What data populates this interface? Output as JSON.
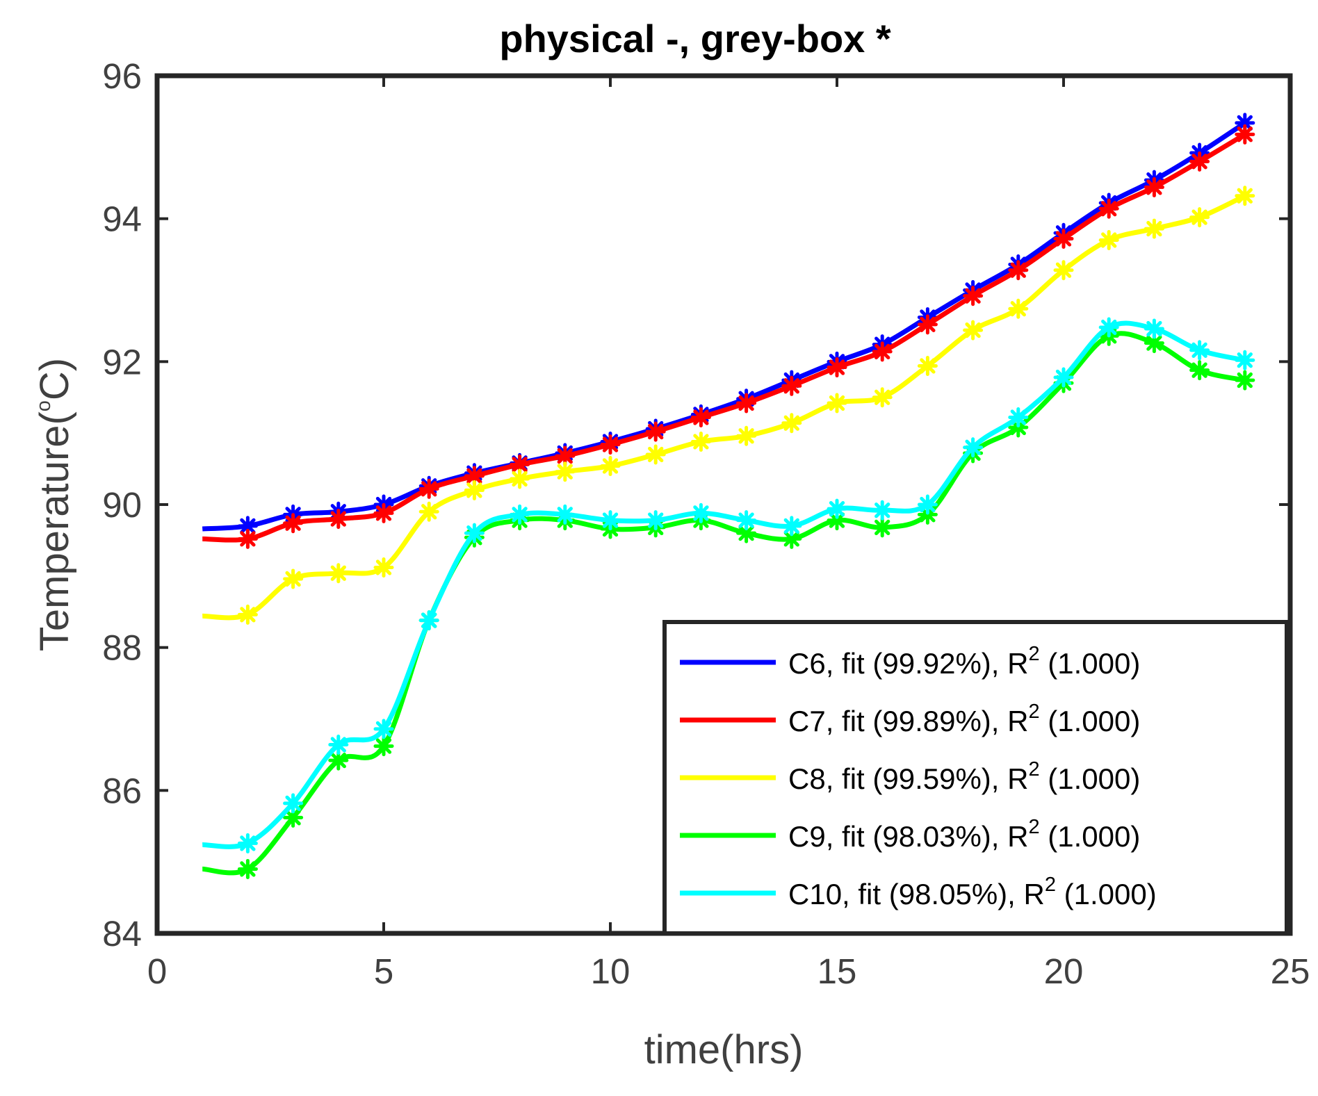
{
  "chart_data": {
    "type": "line",
    "title": "physical -, grey-box *",
    "xlabel": "time(hrs)",
    "ylabel": {
      "prefix": "Temperature(",
      "superscript": "o",
      "suffix": "C)"
    },
    "xlim": [
      0,
      25
    ],
    "ylim": [
      84,
      96
    ],
    "xticks": [
      0,
      5,
      10,
      15,
      20,
      25
    ],
    "yticks": [
      84,
      86,
      88,
      90,
      92,
      94,
      96
    ],
    "legend_position": "bottom-right",
    "series": [
      {
        "name": "C6",
        "legend": {
          "prefix": "C6, fit (99.92%), R",
          "superscript": "2",
          "suffix": " (1.000)"
        },
        "color": "#0000ff",
        "x": [
          1,
          2,
          3,
          4,
          5,
          6,
          7,
          8,
          9,
          10,
          11,
          12,
          13,
          14,
          15,
          16,
          17,
          18,
          19,
          20,
          21,
          22,
          23,
          24
        ],
        "values": [
          89.66,
          89.7,
          89.86,
          89.9,
          90.0,
          90.26,
          90.44,
          90.58,
          90.72,
          90.88,
          91.06,
          91.26,
          91.48,
          91.74,
          92.0,
          92.24,
          92.62,
          93.0,
          93.36,
          93.8,
          94.22,
          94.54,
          94.92,
          95.34
        ]
      },
      {
        "name": "C7",
        "legend": {
          "prefix": "C7, fit (99.89%), R",
          "superscript": "2",
          "suffix": " (1.000)"
        },
        "color": "#ff0000",
        "x": [
          1,
          2,
          3,
          4,
          5,
          6,
          7,
          8,
          9,
          10,
          11,
          12,
          13,
          14,
          15,
          16,
          17,
          18,
          19,
          20,
          21,
          22,
          23,
          24
        ],
        "values": [
          89.52,
          89.52,
          89.74,
          89.8,
          89.88,
          90.22,
          90.4,
          90.56,
          90.68,
          90.84,
          91.02,
          91.22,
          91.42,
          91.66,
          91.92,
          92.14,
          92.52,
          92.92,
          93.28,
          93.72,
          94.14,
          94.44,
          94.8,
          95.18
        ]
      },
      {
        "name": "C8",
        "legend": {
          "prefix": "C8, fit (99.59%), R",
          "superscript": "2",
          "suffix": " (1.000)"
        },
        "color": "#ffff00",
        "x": [
          1,
          2,
          3,
          4,
          5,
          6,
          7,
          8,
          9,
          10,
          11,
          12,
          13,
          14,
          15,
          16,
          17,
          18,
          19,
          20,
          21,
          22,
          23,
          24
        ],
        "values": [
          88.44,
          88.46,
          88.96,
          89.04,
          89.12,
          89.9,
          90.2,
          90.36,
          90.46,
          90.54,
          90.7,
          90.88,
          90.96,
          91.14,
          91.42,
          91.5,
          91.94,
          92.44,
          92.74,
          93.28,
          93.7,
          93.86,
          94.02,
          94.32
        ]
      },
      {
        "name": "C9",
        "legend": {
          "prefix": "C9, fit (98.03%), R",
          "superscript": "2",
          "suffix": " (1.000)"
        },
        "color": "#00ff00",
        "x": [
          1,
          2,
          3,
          4,
          5,
          6,
          7,
          8,
          9,
          10,
          11,
          12,
          13,
          14,
          15,
          16,
          17,
          18,
          19,
          20,
          21,
          22,
          23,
          24
        ],
        "values": [
          84.9,
          84.9,
          85.62,
          86.42,
          86.62,
          88.38,
          89.54,
          89.78,
          89.78,
          89.66,
          89.68,
          89.78,
          89.6,
          89.52,
          89.78,
          89.68,
          89.86,
          90.72,
          91.08,
          91.7,
          92.36,
          92.26,
          91.88,
          91.74
        ]
      },
      {
        "name": "C10",
        "legend": {
          "prefix": "C10, fit (98.05%), R",
          "superscript": "2",
          "suffix": " (1.000)"
        },
        "color": "#00ffff",
        "x": [
          1,
          2,
          3,
          4,
          5,
          6,
          7,
          8,
          9,
          10,
          11,
          12,
          13,
          14,
          15,
          16,
          17,
          18,
          19,
          20,
          21,
          22,
          23,
          24
        ],
        "values": [
          85.24,
          85.26,
          85.82,
          86.64,
          86.86,
          88.38,
          89.6,
          89.86,
          89.86,
          89.78,
          89.78,
          89.88,
          89.78,
          89.7,
          89.94,
          89.92,
          90.0,
          90.8,
          91.22,
          91.78,
          92.48,
          92.46,
          92.16,
          92.02
        ]
      }
    ]
  }
}
